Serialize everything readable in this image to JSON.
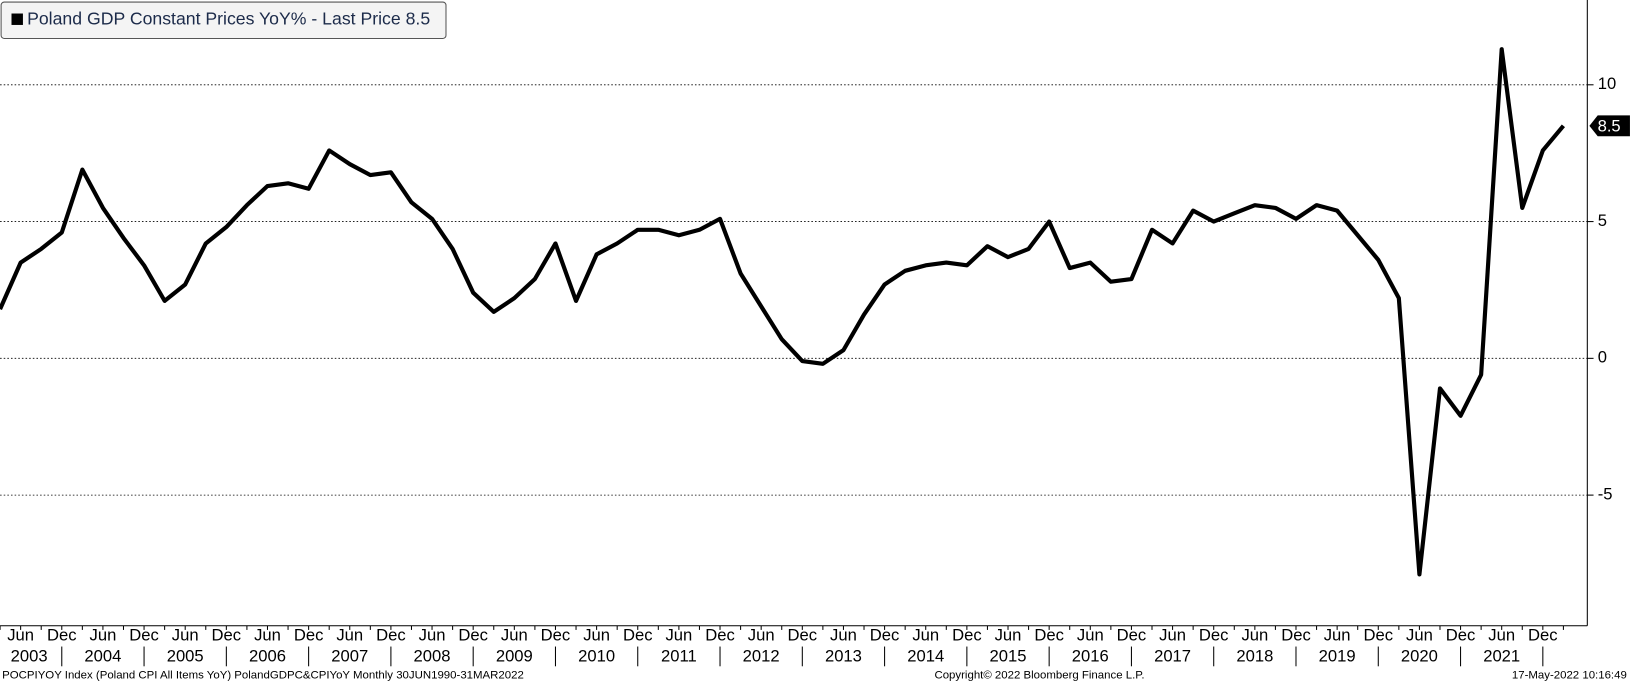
{
  "chart_data": {
    "type": "line",
    "legend_suffix": "- Last Price",
    "categories": [
      null,
      "Jun",
      null,
      "Dec",
      null,
      "Jun",
      null,
      "Dec",
      null,
      "Jun",
      null,
      "Dec",
      null,
      "Jun",
      null,
      "Dec",
      null,
      "Jun",
      null,
      "Dec",
      null,
      "Jun",
      null,
      "Dec",
      null,
      "Jun",
      null,
      "Dec",
      null,
      "Jun",
      null,
      "Dec",
      null,
      "Jun",
      null,
      "Dec",
      null,
      "Jun",
      null,
      "Dec",
      null,
      "Jun",
      null,
      "Dec",
      null,
      "Jun",
      null,
      "Dec",
      null,
      "Jun",
      null,
      "Dec",
      null,
      "Jun",
      null,
      "Dec",
      null,
      "Jun",
      null,
      "Dec",
      null,
      "Jun",
      null,
      "Dec",
      null,
      "Jun",
      null,
      "Dec",
      null,
      "Jun",
      null,
      "Dec",
      null,
      "Jun",
      null,
      "Dec",
      null
    ],
    "x_groups": [
      "2003",
      "2004",
      "2005",
      "2006",
      "2007",
      "2008",
      "2009",
      "2010",
      "2011",
      "2012",
      "2013",
      "2014",
      "2015",
      "2016",
      "2017",
      "2018",
      "2019",
      "2020",
      "2021"
    ],
    "series": [
      {
        "name": "Poland GDP Constant Prices YoY%",
        "color": "#000000",
        "values": [
          1.8,
          3.5,
          4.0,
          4.6,
          6.9,
          5.5,
          4.4,
          3.4,
          2.1,
          2.7,
          4.2,
          4.8,
          5.6,
          6.3,
          6.4,
          6.2,
          7.6,
          7.1,
          6.7,
          6.8,
          5.7,
          5.1,
          4.0,
          2.4,
          1.7,
          2.2,
          2.9,
          4.2,
          2.1,
          3.8,
          4.2,
          4.7,
          4.7,
          4.5,
          4.7,
          5.1,
          3.1,
          1.9,
          0.7,
          -0.1,
          -0.2,
          0.3,
          1.6,
          2.7,
          3.2,
          3.4,
          3.5,
          3.4,
          4.1,
          3.7,
          4.0,
          5.0,
          3.3,
          3.5,
          2.8,
          2.9,
          4.7,
          4.2,
          5.4,
          5.0,
          5.3,
          5.6,
          5.5,
          5.1,
          5.6,
          5.4,
          4.5,
          3.6,
          2.2,
          -7.9,
          -1.1,
          -2.1,
          -0.6,
          11.3,
          5.5,
          7.6,
          8.5
        ]
      }
    ],
    "ylim": [
      -9.7,
      13.1
    ],
    "yticks": [
      -5,
      0,
      5,
      10
    ],
    "grid": true,
    "footer_left": "POCPIYOY Index (Poland CPI All Items YoY) PolandGDPC&CPIYoY  Monthly 30JUN1990-31MAR2022",
    "footer_center": "Copyright© 2022 Bloomberg Finance L.P.",
    "footer_right": "17-May-2022 10:16:49"
  }
}
